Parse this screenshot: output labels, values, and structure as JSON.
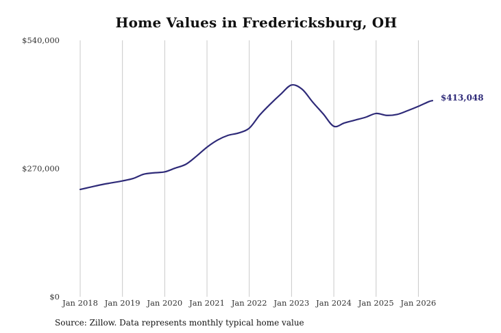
{
  "chart_data": {
    "type": "line",
    "title": "Home Values in Fredericksburg, OH",
    "xlabel": "",
    "ylabel": "",
    "ylim": [
      0,
      540000
    ],
    "xlim": [
      "2018-01",
      "2026-05"
    ],
    "grid": "vertical",
    "y_ticks": [
      {
        "value": 0,
        "label": "$0"
      },
      {
        "value": 270000,
        "label": "$270,000"
      },
      {
        "value": 540000,
        "label": "$540,000"
      }
    ],
    "x_ticks": [
      {
        "value": "2018-01",
        "label": "Jan 2018"
      },
      {
        "value": "2019-01",
        "label": "Jan 2019"
      },
      {
        "value": "2020-01",
        "label": "Jan 2020"
      },
      {
        "value": "2021-01",
        "label": "Jan 2021"
      },
      {
        "value": "2022-01",
        "label": "Jan 2022"
      },
      {
        "value": "2023-01",
        "label": "Jan 2023"
      },
      {
        "value": "2024-01",
        "label": "Jan 2024"
      },
      {
        "value": "2025-01",
        "label": "Jan 2025"
      },
      {
        "value": "2026-01",
        "label": "Jan 2026"
      }
    ],
    "series": [
      {
        "color": "#2e2a78",
        "x": [
          "2018-01",
          "2018-04",
          "2018-07",
          "2018-10",
          "2019-01",
          "2019-04",
          "2019-07",
          "2019-10",
          "2020-01",
          "2020-04",
          "2020-07",
          "2020-10",
          "2021-01",
          "2021-04",
          "2021-07",
          "2021-10",
          "2022-01",
          "2022-04",
          "2022-07",
          "2022-10",
          "2023-01",
          "2023-04",
          "2023-07",
          "2023-10",
          "2024-01",
          "2024-04",
          "2024-07",
          "2024-10",
          "2025-01",
          "2025-04",
          "2025-07",
          "2025-10",
          "2026-01",
          "2026-04",
          "2026-05"
        ],
        "values": [
          226000,
          231000,
          236000,
          240000,
          244000,
          249000,
          258000,
          261000,
          263000,
          271000,
          279000,
          296000,
          315000,
          330000,
          340000,
          345000,
          355000,
          383000,
          406000,
          427000,
          446000,
          437000,
          410000,
          385000,
          359000,
          366000,
          372000,
          378000,
          386000,
          382000,
          384000,
          392000,
          401000,
          411000,
          413048
        ]
      }
    ],
    "end_label": "$413,048"
  },
  "source_note": "Source: Zillow. Data represents monthly typical home value"
}
